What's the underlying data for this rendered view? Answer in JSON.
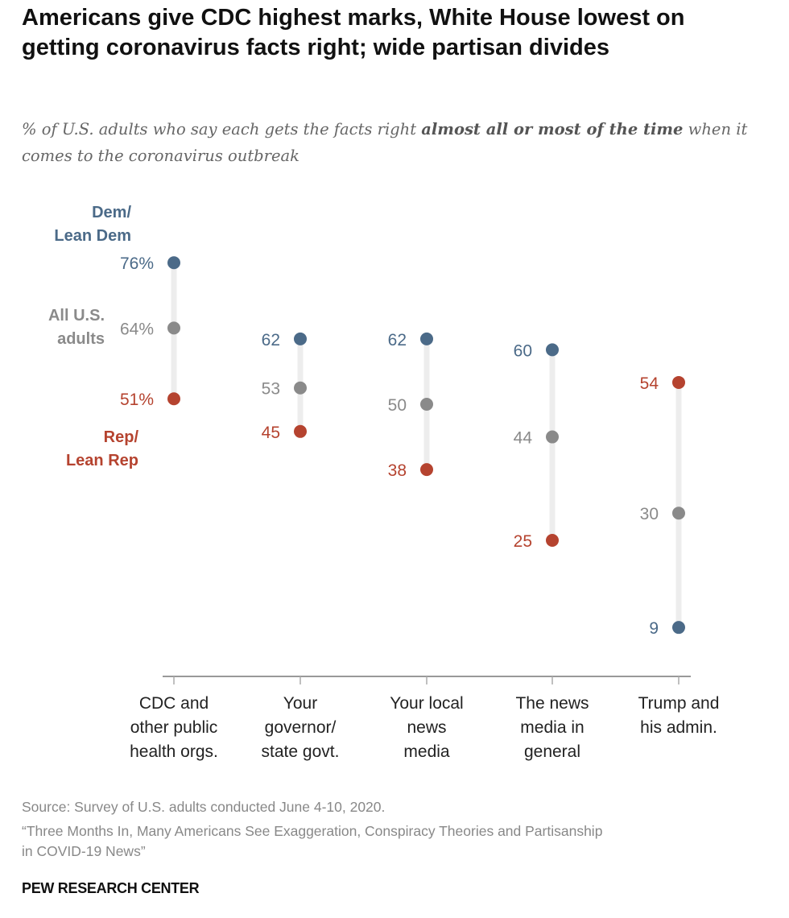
{
  "title": "Americans give CDC highest marks, White House lowest on getting coronavirus facts right; wide partisan divides",
  "subtitle": {
    "part1": "% of U.S. adults who say each gets the facts right ",
    "bold": "almost all or most of the time",
    "part2": " when it comes to the coronavirus outbreak"
  },
  "chart_data": {
    "type": "dot-plot",
    "categories": [
      [
        "CDC and",
        "other public",
        "health orgs."
      ],
      [
        "Your",
        "governor/",
        "state govt."
      ],
      [
        "Your local",
        "news",
        "media"
      ],
      [
        "The news",
        "media in",
        "general"
      ],
      [
        "Trump and",
        "his admin."
      ]
    ],
    "series": [
      {
        "name": "Dem/ Lean Dem",
        "label_lines": [
          "Dem/",
          "Lean Dem"
        ],
        "color": "#4b6a88",
        "values": [
          76,
          62,
          62,
          60,
          9
        ]
      },
      {
        "name": "All U.S. adults",
        "label_lines": [
          "All U.S.",
          "adults"
        ],
        "color": "#8a8a8a",
        "values": [
          64,
          53,
          50,
          44,
          30
        ]
      },
      {
        "name": "Rep/ Lean Rep",
        "label_lines": [
          "Rep/",
          "Lean Rep"
        ],
        "color": "#b5432f",
        "values": [
          51,
          45,
          38,
          25,
          54
        ]
      }
    ],
    "first_value_suffix": "%",
    "ylim": [
      0,
      80
    ],
    "grid": false,
    "connector_color": "#ededed"
  },
  "footer": {
    "source": "Source: Survey of U.S. adults conducted June 4-10, 2020.",
    "report_line1": "“Three Months In, Many Americans See Exaggeration, Conspiracy Theories and Partisanship",
    "report_line2": "in COVID-19 News”",
    "brand": "PEW RESEARCH CENTER"
  }
}
